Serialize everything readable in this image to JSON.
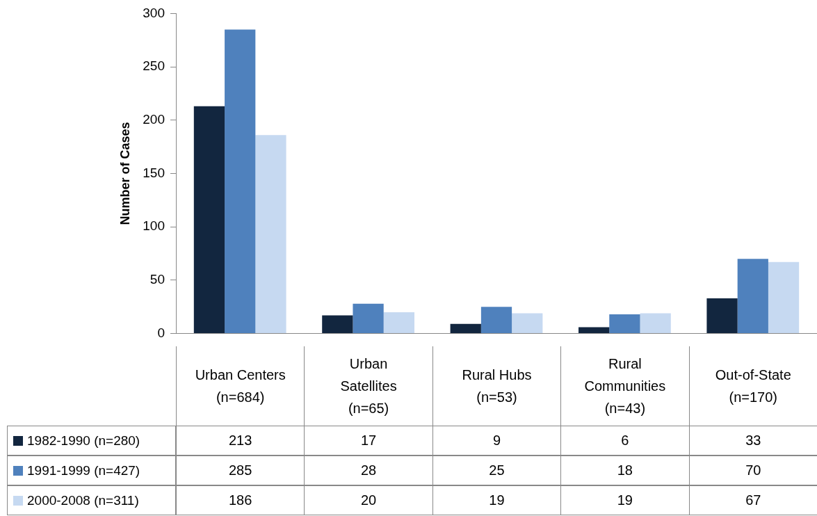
{
  "chart_data": {
    "type": "bar",
    "ylabel": "Number of Cases",
    "categories": [
      "Urban Centers (n=684)",
      "Urban Satellites (n=65)",
      "Rural Hubs (n=53)",
      "Rural Communities (n=43)",
      "Out-of-State (n=170)"
    ],
    "series": [
      {
        "name": "1982-1990 (n=280)",
        "color": "#12263f",
        "values": [
          213,
          17,
          9,
          6,
          33
        ]
      },
      {
        "name": "1991-1999 (n=427)",
        "color": "#4f81bd",
        "values": [
          285,
          28,
          25,
          18,
          70
        ]
      },
      {
        "name": "2000-2008 (n=311)",
        "color": "#c6d9f1",
        "values": [
          186,
          20,
          19,
          19,
          67
        ]
      }
    ],
    "ylim": [
      0,
      300
    ],
    "yticks": [
      0,
      50,
      100,
      150,
      200,
      250,
      300
    ],
    "grid": false,
    "legend": "bottom",
    "data_labels": true
  }
}
